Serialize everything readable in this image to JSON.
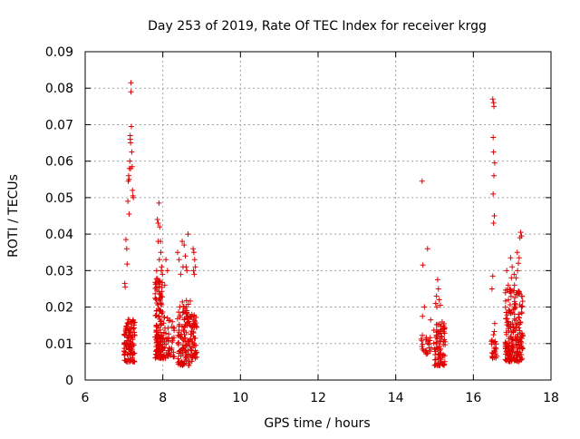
{
  "chart_data": {
    "type": "scatter",
    "title": "Day 253 of 2019, Rate Of TEC Index for receiver krgg",
    "xlabel": "GPS time / hours",
    "ylabel": "ROTI / TECUs",
    "xlim": [
      6,
      18
    ],
    "ylim": [
      0,
      0.09
    ],
    "xticks": [
      6,
      8,
      10,
      12,
      14,
      16,
      18
    ],
    "yticks": [
      0,
      0.01,
      0.02,
      0.03,
      0.04,
      0.05,
      0.06,
      0.07,
      0.08,
      0.09
    ],
    "xtick_labels": [
      "6",
      "8",
      "10",
      "12",
      "14",
      "16",
      "18"
    ],
    "ytick_labels": [
      "0",
      "0.01",
      "0.02",
      "0.03",
      "0.04",
      "0.05",
      "0.06",
      "0.07",
      "0.08",
      "0.09"
    ],
    "grid": true,
    "marker": "+",
    "color": "#e00000",
    "series": [
      {
        "name": "ROTI",
        "points": [
          [
            7.02,
            0.0265
          ],
          [
            7.03,
            0.0255
          ],
          [
            7.05,
            0.0385
          ],
          [
            7.07,
            0.036
          ],
          [
            7.08,
            0.0318
          ],
          [
            7.1,
            0.049
          ],
          [
            7.11,
            0.0545
          ],
          [
            7.12,
            0.056
          ],
          [
            7.13,
            0.0455
          ],
          [
            7.14,
            0.058
          ],
          [
            7.15,
            0.06
          ],
          [
            7.16,
            0.066
          ],
          [
            7.17,
            0.065
          ],
          [
            7.18,
            0.0815
          ],
          [
            7.18,
            0.079
          ],
          [
            7.19,
            0.0695
          ],
          [
            7.2,
            0.0625
          ],
          [
            7.21,
            0.0585
          ],
          [
            7.22,
            0.052
          ],
          [
            7.23,
            0.0505
          ],
          [
            7.24,
            0.05
          ],
          [
            7.16,
            0.067
          ],
          [
            7.13,
            0.055
          ],
          [
            7.17,
            0.058
          ],
          [
            7.86,
            0.044
          ],
          [
            7.88,
            0.043
          ],
          [
            7.9,
            0.0485
          ],
          [
            7.92,
            0.042
          ],
          [
            7.94,
            0.038
          ],
          [
            7.95,
            0.035
          ],
          [
            7.97,
            0.031
          ],
          [
            7.88,
            0.038
          ],
          [
            7.91,
            0.033
          ],
          [
            7.84,
            0.03
          ],
          [
            7.96,
            0.03
          ],
          [
            8.08,
            0.033
          ],
          [
            8.12,
            0.03
          ],
          [
            7.99,
            0.029
          ],
          [
            8.05,
            0.026
          ],
          [
            8.38,
            0.035
          ],
          [
            8.42,
            0.033
          ],
          [
            8.5,
            0.038
          ],
          [
            8.55,
            0.037
          ],
          [
            8.58,
            0.034
          ],
          [
            8.6,
            0.031
          ],
          [
            8.62,
            0.03
          ],
          [
            8.65,
            0.04
          ],
          [
            8.52,
            0.031
          ],
          [
            8.46,
            0.029
          ],
          [
            8.78,
            0.036
          ],
          [
            8.8,
            0.035
          ],
          [
            8.82,
            0.033
          ],
          [
            8.84,
            0.031
          ],
          [
            8.79,
            0.03
          ],
          [
            8.81,
            0.029
          ],
          [
            14.68,
            0.0545
          ],
          [
            14.7,
            0.0315
          ],
          [
            14.82,
            0.036
          ],
          [
            14.74,
            0.02
          ],
          [
            14.69,
            0.0175
          ],
          [
            14.9,
            0.0165
          ],
          [
            15.03,
            0.021
          ],
          [
            15.05,
            0.023
          ],
          [
            15.08,
            0.0275
          ],
          [
            15.1,
            0.025
          ],
          [
            15.12,
            0.022
          ],
          [
            15.15,
            0.0205
          ],
          [
            15.2,
            0.014
          ],
          [
            15.06,
            0.02
          ],
          [
            16.5,
            0.077
          ],
          [
            16.52,
            0.076
          ],
          [
            16.53,
            0.075
          ],
          [
            16.51,
            0.0665
          ],
          [
            16.52,
            0.0625
          ],
          [
            16.55,
            0.0595
          ],
          [
            16.53,
            0.056
          ],
          [
            16.51,
            0.051
          ],
          [
            16.54,
            0.045
          ],
          [
            16.52,
            0.043
          ],
          [
            16.5,
            0.0285
          ],
          [
            16.48,
            0.025
          ],
          [
            16.55,
            0.0155
          ],
          [
            16.86,
            0.03
          ],
          [
            16.9,
            0.026
          ],
          [
            16.96,
            0.0335
          ],
          [
            17.0,
            0.031
          ],
          [
            17.05,
            0.029
          ],
          [
            17.1,
            0.028
          ],
          [
            17.13,
            0.035
          ],
          [
            17.16,
            0.032
          ],
          [
            17.18,
            0.0335
          ],
          [
            17.2,
            0.039
          ],
          [
            17.22,
            0.0405
          ],
          [
            17.24,
            0.0395
          ],
          [
            17.14,
            0.03
          ],
          [
            17.06,
            0.026
          ],
          [
            16.98,
            0.028
          ]
        ],
        "clusters": [
          {
            "x": [
              7.0,
              7.28
            ],
            "y": [
              0.005,
              0.017
            ],
            "n": 110
          },
          {
            "x": [
              7.8,
              8.0
            ],
            "y": [
              0.006,
              0.028
            ],
            "n": 130
          },
          {
            "x": [
              8.0,
              8.3
            ],
            "y": [
              0.006,
              0.018
            ],
            "n": 55
          },
          {
            "x": [
              8.38,
              8.75
            ],
            "y": [
              0.004,
              0.022
            ],
            "n": 130
          },
          {
            "x": [
              8.74,
              8.88
            ],
            "y": [
              0.006,
              0.018
            ],
            "n": 45
          },
          {
            "x": [
              14.65,
              14.92
            ],
            "y": [
              0.007,
              0.013
            ],
            "n": 25
          },
          {
            "x": [
              14.98,
              15.28
            ],
            "y": [
              0.004,
              0.016
            ],
            "n": 85
          },
          {
            "x": [
              16.45,
              16.6
            ],
            "y": [
              0.006,
              0.014
            ],
            "n": 25
          },
          {
            "x": [
              16.82,
              17.28
            ],
            "y": [
              0.005,
              0.025
            ],
            "n": 210
          }
        ]
      }
    ]
  }
}
